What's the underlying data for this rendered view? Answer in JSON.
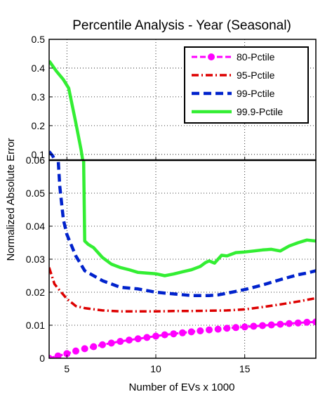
{
  "chart_data": {
    "type": "line",
    "title": "Percentile Analysis - Year (Seasonal)",
    "xlabel": "Number of EVs x 1000",
    "ylabel": "Normalized Absolute Error",
    "xlim": [
      4,
      19
    ],
    "x_ticks": [
      5,
      10,
      15
    ],
    "grid": true,
    "legend_position": "top-right",
    "panels": [
      {
        "name": "upper",
        "ylim": [
          0.08,
          0.5
        ],
        "y_ticks": [
          0.1,
          0.2,
          0.3,
          0.4,
          0.5
        ],
        "y_tick_labels": [
          "0.1",
          "0.2",
          "0.3",
          "0.4",
          "0.5"
        ]
      },
      {
        "name": "lower",
        "ylim": [
          0,
          0.06
        ],
        "y_ticks": [
          0,
          0.01,
          0.02,
          0.03,
          0.04,
          0.05,
          0.06
        ],
        "y_tick_labels": [
          "0",
          "0.01",
          "0.02",
          "0.03",
          "0.04",
          "0.05",
          "0.06"
        ]
      }
    ],
    "series": [
      {
        "name": "80-Pctile",
        "color": "#ff00ff",
        "style": "dashed-markers",
        "panel": "lower",
        "x": [
          4,
          4.5,
          5,
          5.5,
          6,
          6.5,
          7,
          7.5,
          8,
          8.5,
          9,
          9.5,
          10,
          10.5,
          11,
          11.5,
          12,
          12.5,
          13,
          13.5,
          14,
          14.5,
          15,
          15.5,
          16,
          16.5,
          17,
          17.5,
          18,
          18.5,
          19
        ],
        "values": [
          0.0,
          0.0007,
          0.0014,
          0.0022,
          0.0029,
          0.0035,
          0.0041,
          0.0046,
          0.0051,
          0.0055,
          0.0059,
          0.0063,
          0.0067,
          0.0071,
          0.0074,
          0.0077,
          0.008,
          0.0083,
          0.0086,
          0.0088,
          0.0091,
          0.0093,
          0.0095,
          0.0097,
          0.0099,
          0.0101,
          0.0103,
          0.0105,
          0.0107,
          0.0109,
          0.011
        ]
      },
      {
        "name": "95-Pctile",
        "color": "#dd0000",
        "style": "dash-dot",
        "panel": "lower",
        "x": [
          4,
          4.3,
          4.6,
          5,
          5.5,
          6,
          7,
          8,
          9,
          10,
          11,
          12,
          13,
          14,
          15,
          16,
          17,
          18,
          19
        ],
        "values": [
          0.0275,
          0.0225,
          0.0205,
          0.018,
          0.0158,
          0.0152,
          0.0145,
          0.0142,
          0.0142,
          0.0142,
          0.0143,
          0.0143,
          0.0144,
          0.0145,
          0.0148,
          0.0155,
          0.0163,
          0.0172,
          0.0182
        ]
      },
      {
        "name": "99-Pctile",
        "color": "#0022cc",
        "style": "dashed",
        "panel": "both",
        "x": [
          4,
          4.2,
          4.4,
          4.6,
          4.8,
          5,
          5.5,
          6,
          7,
          8,
          9,
          10,
          11,
          12,
          13,
          13.5,
          14,
          15,
          16,
          17,
          18,
          18.5,
          19
        ],
        "values": [
          0.11,
          0.095,
          0.07,
          0.052,
          0.042,
          0.0375,
          0.031,
          0.0265,
          0.0235,
          0.0215,
          0.021,
          0.02,
          0.0195,
          0.019,
          0.019,
          0.0192,
          0.0197,
          0.0208,
          0.0222,
          0.0238,
          0.0253,
          0.0258,
          0.0265
        ]
      },
      {
        "name": "99.9-Pctile",
        "color": "#33ee33",
        "style": "solid",
        "panel": "both",
        "x": [
          4,
          4.4,
          4.8,
          5.1,
          5.5,
          5.8,
          6,
          6.2,
          6.5,
          7,
          7.5,
          8,
          8.5,
          9,
          9.5,
          10,
          10.5,
          11,
          11.5,
          12,
          12.5,
          12.8,
          13,
          13.3,
          13.7,
          14,
          14.5,
          15,
          15.5,
          16,
          16.5,
          17,
          17.5,
          18,
          18.5,
          19
        ],
        "values": [
          0.425,
          0.39,
          0.36,
          0.33,
          0.21,
          0.115,
          0.0355,
          0.0345,
          0.0335,
          0.0305,
          0.0285,
          0.0275,
          0.0268,
          0.026,
          0.0258,
          0.0256,
          0.025,
          0.0255,
          0.0262,
          0.0268,
          0.0278,
          0.029,
          0.0295,
          0.0288,
          0.0312,
          0.031,
          0.032,
          0.0322,
          0.0325,
          0.0328,
          0.033,
          0.0325,
          0.034,
          0.035,
          0.0358,
          0.0355
        ]
      }
    ]
  }
}
